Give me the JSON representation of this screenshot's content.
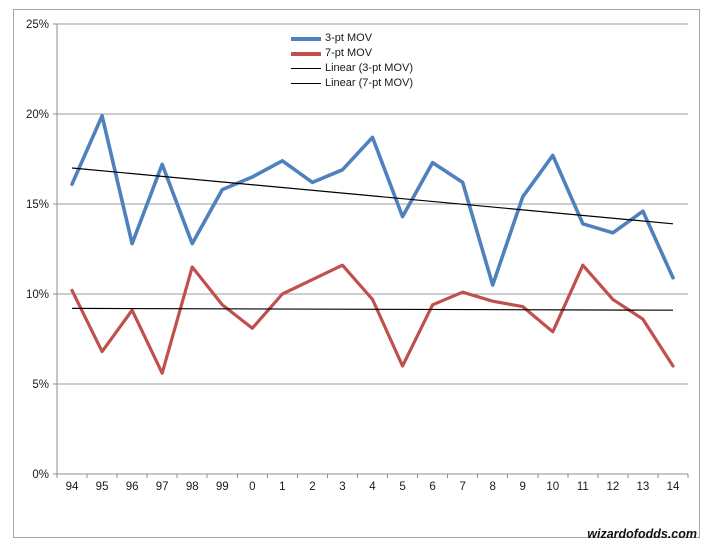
{
  "watermark": "wizardofodds.com",
  "chart_data": {
    "type": "line",
    "categories": [
      "94",
      "95",
      "96",
      "97",
      "98",
      "99",
      "0",
      "1",
      "2",
      "3",
      "4",
      "5",
      "6",
      "7",
      "8",
      "9",
      "10",
      "11",
      "12",
      "13",
      "14"
    ],
    "y_tick_labels": [
      "0%",
      "5%",
      "10%",
      "15%",
      "20%",
      "25%"
    ],
    "y_tick_values": [
      0,
      5,
      10,
      15,
      20,
      25
    ],
    "ylim": [
      0,
      25
    ],
    "grid": true,
    "grid_color": "#9d9d9d",
    "axis_color": "#8f8f8f",
    "legend_position": "top-center-inside",
    "series": [
      {
        "name": "3-pt MOV",
        "color": "#4F81BD",
        "stroke_width": 3.6,
        "values": [
          16.1,
          19.9,
          12.8,
          17.2,
          12.8,
          15.8,
          16.5,
          17.4,
          16.2,
          16.9,
          18.7,
          14.3,
          17.3,
          16.2,
          10.5,
          15.4,
          17.7,
          13.9,
          13.4,
          14.6,
          10.9
        ]
      },
      {
        "name": "7-pt MOV",
        "color": "#C0504D",
        "stroke_width": 3.2,
        "values": [
          10.2,
          6.8,
          9.1,
          5.6,
          11.5,
          9.4,
          8.1,
          10.0,
          10.8,
          11.6,
          9.7,
          6.0,
          9.4,
          10.1,
          9.6,
          9.3,
          7.9,
          11.6,
          9.7,
          8.6,
          6.0
        ]
      }
    ],
    "trendlines": [
      {
        "name": "Linear (3-pt MOV)",
        "color": "#000000",
        "start_value": 17.0,
        "end_value": 13.9
      },
      {
        "name": "Linear (7-pt MOV)",
        "color": "#000000",
        "start_value": 9.2,
        "end_value": 9.1
      }
    ]
  }
}
